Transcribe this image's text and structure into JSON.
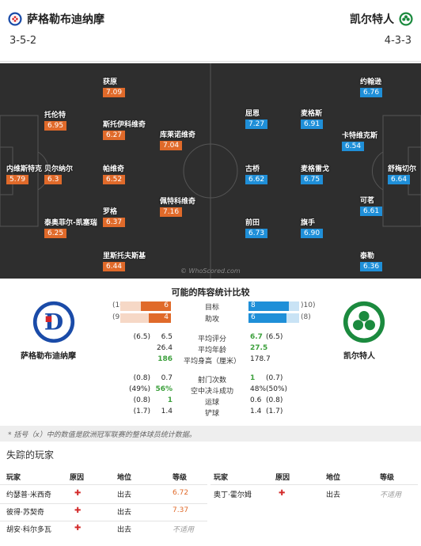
{
  "header": {
    "home_team": "萨格勒布迪纳摩",
    "away_team": "凯尔特人",
    "home_formation": "3-5-2",
    "away_formation": "4-3-3"
  },
  "pitch": {
    "watermark": "© WhoScored.com",
    "home_players": [
      {
        "name": "获原",
        "rating": "7.09"
      },
      {
        "name": "托伦特",
        "rating": "6.95"
      },
      {
        "name": "斯托伊科维奇",
        "rating": "6.27"
      },
      {
        "name": "库莱诺维奇",
        "rating": "7.04"
      },
      {
        "name": "内维斯特克",
        "rating": "5.79"
      },
      {
        "name": "贝尔纳尔",
        "rating": "6.3"
      },
      {
        "name": "帕维奇",
        "rating": "6.52"
      },
      {
        "name": "佩特科维奇",
        "rating": "7.16"
      },
      {
        "name": "罗格",
        "rating": "6.37"
      },
      {
        "name": "泰奥菲尔-凯塞瑞",
        "rating": "6.25"
      },
      {
        "name": "里斯托夫斯基",
        "rating": "6.44"
      }
    ],
    "away_players": [
      {
        "name": "约翰逊",
        "rating": "6.76"
      },
      {
        "name": "屈恩",
        "rating": "7.27"
      },
      {
        "name": "麦格斯",
        "rating": "6.91"
      },
      {
        "name": "卡特维克斯",
        "rating": "6.54"
      },
      {
        "name": "古桥",
        "rating": "6.62"
      },
      {
        "name": "麦格雷戈",
        "rating": "6.75"
      },
      {
        "name": "舒梅切尔",
        "rating": "6.64"
      },
      {
        "name": "可茗",
        "rating": "6.61"
      },
      {
        "name": "前田",
        "rating": "6.73"
      },
      {
        "name": "旗手",
        "rating": "6.90"
      },
      {
        "name": "泰勒",
        "rating": "6.36"
      }
    ]
  },
  "stats": {
    "title": "可能的阵容统计比较",
    "home_label": "萨格勒布迪纳摩",
    "away_label": "凯尔特人",
    "goals": {
      "label": "目标",
      "home": "6",
      "home_avg": "(10",
      "away": "8",
      "away_avg": ")10)",
      "home_frac": 0.6,
      "away_frac": 0.8
    },
    "assists": {
      "label": "助攻",
      "home": "4",
      "home_avg": "(9",
      "away": "6",
      "away_avg": "(8)",
      "home_frac": 0.44,
      "away_frac": 0.75
    },
    "lines": [
      {
        "label": "平均评分",
        "home_avg": "(6.5)",
        "home": "6.5",
        "away": "6.7",
        "away_avg": "(6.5)",
        "home_green": false,
        "away_green": true
      },
      {
        "label": "平均年龄",
        "home_avg": "",
        "home": "26.4",
        "away": "27.5",
        "away_avg": "",
        "home_green": false,
        "away_green": true
      },
      {
        "label": "平均身高（厘米）",
        "home_avg": "",
        "home": "186",
        "away": "178.7",
        "away_avg": "",
        "home_green": true,
        "away_green": false
      },
      {
        "label": "射门次数",
        "home_avg": "(0.8)",
        "home": "0.7",
        "away": "1",
        "away_avg": "(0.7)",
        "home_green": false,
        "away_green": true
      },
      {
        "label": "空中决斗成功",
        "home_avg": "(49%)",
        "home": "56%",
        "away": "48%",
        "away_avg": "(50%)",
        "home_green": true,
        "away_green": false
      },
      {
        "label": "运球",
        "home_avg": "(0.8)",
        "home": "1",
        "away": "0.6",
        "away_avg": "(0.8)",
        "home_green": true,
        "away_green": false
      },
      {
        "label": "铲球",
        "home_avg": "(1.7)",
        "home": "1.4",
        "away": "1.4",
        "away_avg": "(1.7)",
        "home_green": false,
        "away_green": false
      }
    ]
  },
  "footnote": "* 括号（x）中的数值是欧洲冠军联赛的整体球员统计数据。",
  "missing": {
    "title": "失踪的玩家",
    "headers": {
      "player": "玩家",
      "reason": "原因",
      "position": "地位",
      "rating": "等级"
    },
    "home": [
      {
        "player": "约瑟普·米西奇",
        "position": "出去",
        "rating": "6.72"
      },
      {
        "player": "彼得·苏契奇",
        "position": "出去",
        "rating": "7.37"
      },
      {
        "player": "胡安·科尔多瓦",
        "position": "出去",
        "rating": "不适用"
      }
    ],
    "away": [
      {
        "player": "奥丁·霍尔姆",
        "position": "出去",
        "rating": "不适用"
      }
    ]
  }
}
